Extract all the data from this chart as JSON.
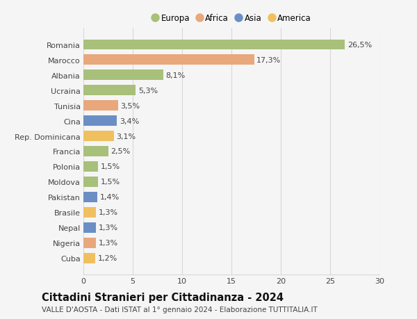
{
  "countries": [
    "Romania",
    "Marocco",
    "Albania",
    "Ucraina",
    "Tunisia",
    "Cina",
    "Rep. Dominicana",
    "Francia",
    "Polonia",
    "Moldova",
    "Pakistan",
    "Brasile",
    "Nepal",
    "Nigeria",
    "Cuba"
  ],
  "values": [
    26.5,
    17.3,
    8.1,
    5.3,
    3.5,
    3.4,
    3.1,
    2.5,
    1.5,
    1.5,
    1.4,
    1.3,
    1.3,
    1.3,
    1.2
  ],
  "labels": [
    "26,5%",
    "17,3%",
    "8,1%",
    "5,3%",
    "3,5%",
    "3,4%",
    "3,1%",
    "2,5%",
    "1,5%",
    "1,5%",
    "1,4%",
    "1,3%",
    "1,3%",
    "1,3%",
    "1,2%"
  ],
  "colors": [
    "#a8c07a",
    "#e8a87c",
    "#a8c07a",
    "#a8c07a",
    "#e8a87c",
    "#6b8fc4",
    "#f0c060",
    "#a8c07a",
    "#a8c07a",
    "#a8c07a",
    "#6b8fc4",
    "#f0c060",
    "#6b8fc4",
    "#e8a87c",
    "#f0c060"
  ],
  "legend_labels": [
    "Europa",
    "Africa",
    "Asia",
    "America"
  ],
  "legend_colors": [
    "#a8c07a",
    "#e8a87c",
    "#6b8fc4",
    "#f0c060"
  ],
  "title": "Cittadini Stranieri per Cittadinanza - 2024",
  "subtitle": "VALLE D'AOSTA - Dati ISTAT al 1° gennaio 2024 - Elaborazione TUTTITALIA.IT",
  "xlim": [
    0,
    30
  ],
  "xticks": [
    0,
    5,
    10,
    15,
    20,
    25,
    30
  ],
  "background_color": "#f5f5f5",
  "grid_color": "#d8d8d8",
  "bar_height": 0.65,
  "label_fontsize": 8,
  "tick_fontsize": 8,
  "title_fontsize": 10.5,
  "subtitle_fontsize": 7.5
}
